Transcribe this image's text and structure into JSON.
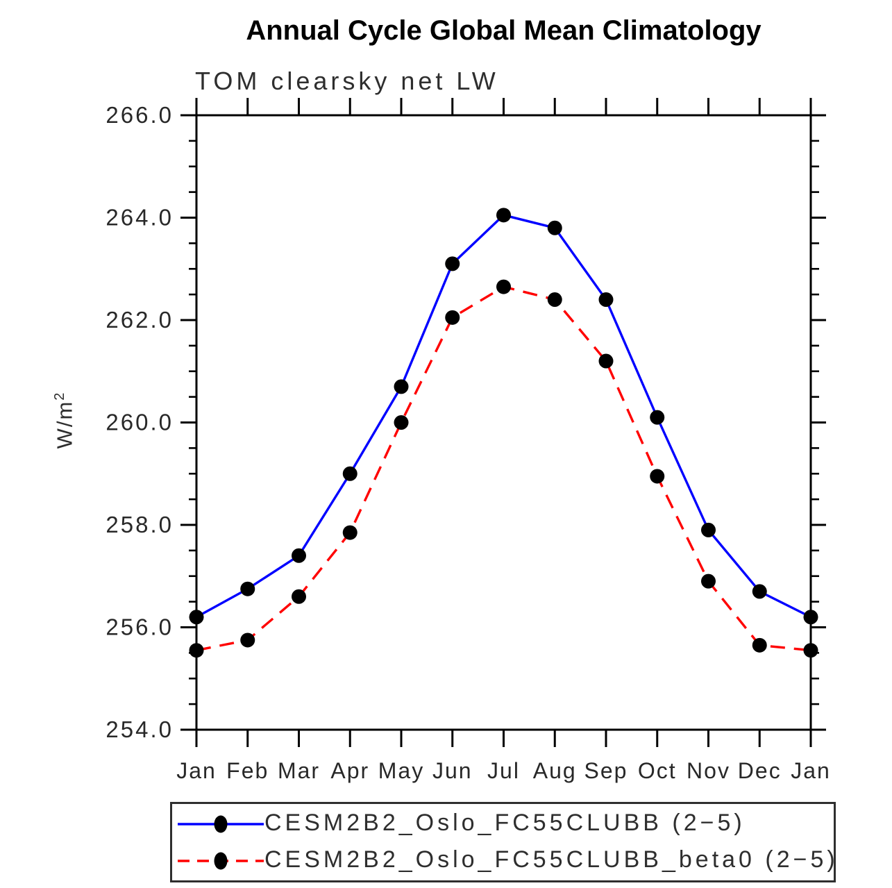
{
  "title": "Annual Cycle Global Mean Climatology",
  "subtitle": "TOM clearsky net LW",
  "y_axis_title": {
    "base": "W/m",
    "exp": "2"
  },
  "chart_data": {
    "type": "line",
    "title": "Annual Cycle Global Mean Climatology",
    "subtitle": "TOM clearsky net LW",
    "ylabel": "W/m^2",
    "xlabel": "",
    "x_tick_labels": [
      "Jan",
      "Feb",
      "Mar",
      "Apr",
      "May",
      "Jun",
      "Jul",
      "Aug",
      "Sep",
      "Oct",
      "Nov",
      "Dec",
      "Jan"
    ],
    "ylim": [
      254.0,
      266.0
    ],
    "y_major_ticks": [
      254.0,
      256.0,
      258.0,
      260.0,
      262.0,
      264.0,
      266.0
    ],
    "y_tick_labels": [
      "254.0",
      "256.0",
      "258.0",
      "260.0",
      "262.0",
      "264.0",
      "266.0"
    ],
    "y_minor_step": 0.5,
    "grid": false,
    "legend_position": "bottom",
    "axis_color": "#000000",
    "marker_color": "#000000",
    "series": [
      {
        "name": "CESM2B2_Oslo_FC55CLUBB (2−5)",
        "color": "#0000ff",
        "line_style": "solid",
        "marker": "circle",
        "values": [
          256.2,
          256.75,
          257.4,
          259.0,
          260.7,
          263.1,
          264.05,
          263.8,
          262.4,
          260.1,
          257.9,
          256.7,
          256.2
        ]
      },
      {
        "name": "CESM2B2_Oslo_FC55CLUBB_beta0 (2−5)",
        "color": "#ff0000",
        "line_style": "dashed",
        "marker": "circle",
        "values": [
          255.55,
          255.75,
          256.6,
          257.85,
          260.0,
          262.05,
          262.65,
          262.4,
          261.2,
          258.95,
          256.9,
          255.65,
          255.55
        ]
      }
    ]
  }
}
